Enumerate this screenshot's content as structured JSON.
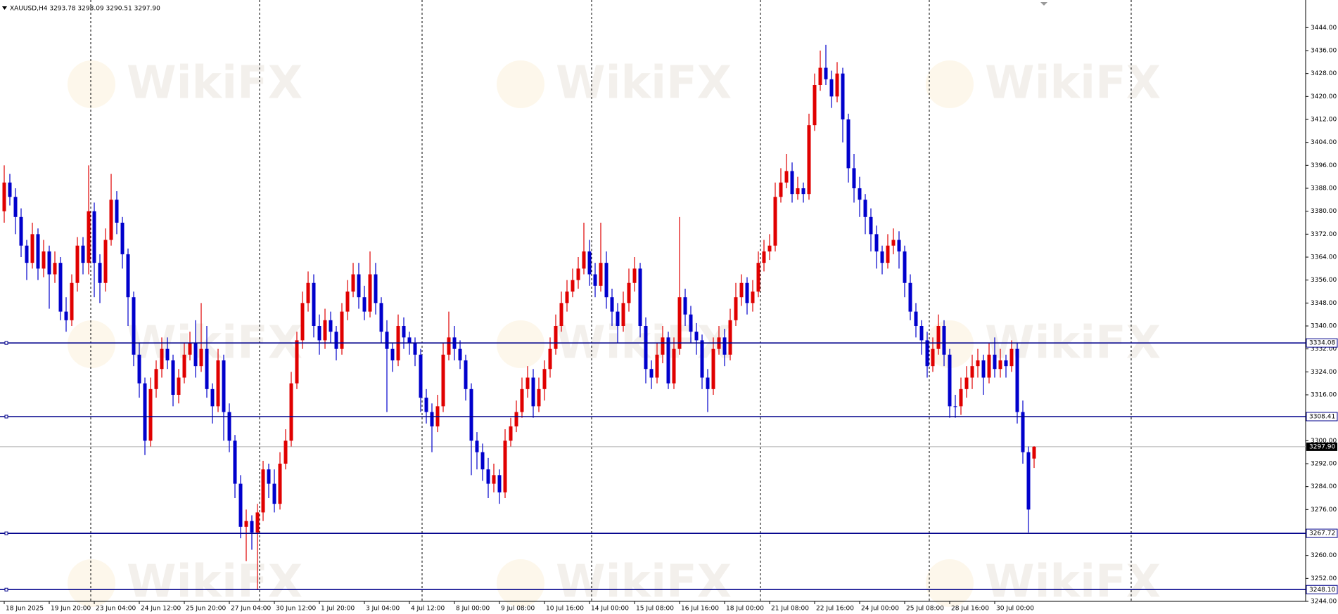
{
  "chart_data": {
    "type": "candlestick",
    "title": "XAUUSD,H4  3293.78 3298.09 3290.51 3297.90",
    "watermark": "WikiFX",
    "up_color": "#e00000",
    "down_color": "#0000cc",
    "level_color": "#00008b",
    "ylim": [
      3244,
      3448
    ],
    "yticks": [
      {
        "value": 3444,
        "label": "3444.00"
      },
      {
        "value": 3436,
        "label": "3436.00"
      },
      {
        "value": 3428,
        "label": "3428.00"
      },
      {
        "value": 3420,
        "label": "3420.00"
      },
      {
        "value": 3412,
        "label": "3412.00"
      },
      {
        "value": 3404,
        "label": "3404.00"
      },
      {
        "value": 3396,
        "label": "3396.00"
      },
      {
        "value": 3388,
        "label": "3388.00"
      },
      {
        "value": 3380,
        "label": "3380.00"
      },
      {
        "value": 3372,
        "label": "3372.00"
      },
      {
        "value": 3364,
        "label": "3364.00"
      },
      {
        "value": 3356,
        "label": "3356.00"
      },
      {
        "value": 3348,
        "label": "3348.00"
      },
      {
        "value": 3340,
        "label": "3340.00"
      },
      {
        "value": 3332,
        "label": "3332.00"
      },
      {
        "value": 3324,
        "label": "3324.00"
      },
      {
        "value": 3316,
        "label": "3316.00"
      },
      {
        "value": 3308,
        "label": "3308.00"
      },
      {
        "value": 3300,
        "label": "3300.00"
      },
      {
        "value": 3292,
        "label": "3292.00"
      },
      {
        "value": 3284,
        "label": "3284.00"
      },
      {
        "value": 3276,
        "label": "3276.00"
      },
      {
        "value": 3268,
        "label": "3268.00"
      },
      {
        "value": 3260,
        "label": "3260.00"
      },
      {
        "value": 3252,
        "label": "3252.00"
      },
      {
        "value": 3244,
        "label": "3244.00"
      }
    ],
    "levels": [
      3334.08,
      3308.41,
      3267.72,
      {
        "value": 3248.1,
        "label": "3248.10"
      }
    ],
    "last_price": {
      "value": 3297.9,
      "label": "3297.90"
    },
    "categories": [
      "18 Jun 2025",
      null,
      null,
      null,
      null,
      null,
      null,
      null,
      "19 Jun 20:00",
      null,
      null,
      null,
      null,
      null,
      null,
      null,
      "23 Jun 04:00",
      null,
      null,
      null,
      null,
      null,
      null,
      null,
      "24 Jun 12:00",
      null,
      null,
      null,
      null,
      null,
      null,
      null,
      "25 Jun 20:00",
      null,
      null,
      null,
      null,
      null,
      null,
      null,
      "27 Jun 04:00",
      null,
      null,
      null,
      null,
      null,
      null,
      null,
      "30 Jun 12:00",
      null,
      null,
      null,
      null,
      null,
      null,
      null,
      "1 Jul 20:00",
      null,
      null,
      null,
      null,
      null,
      null,
      null,
      "3 Jul 04:00",
      null,
      null,
      null,
      null,
      null,
      null,
      null,
      "4 Jul 12:00",
      null,
      null,
      null,
      null,
      null,
      null,
      null,
      "8 Jul 00:00",
      null,
      null,
      null,
      null,
      null,
      null,
      null,
      "9 Jul 08:00",
      null,
      null,
      null,
      null,
      null,
      null,
      null,
      "10 Jul 16:00",
      null,
      null,
      null,
      null,
      null,
      null,
      null,
      "14 Jul 00:00",
      null,
      null,
      null,
      null,
      null,
      null,
      null,
      "15 Jul 08:00",
      null,
      null,
      null,
      null,
      null,
      null,
      null,
      "16 Jul 16:00",
      null,
      null,
      null,
      null,
      null,
      null,
      null,
      "18 Jul 00:00",
      null,
      null,
      null,
      null,
      null,
      null,
      null,
      "21 Jul 08:00",
      null,
      null,
      null,
      null,
      null,
      null,
      null,
      "22 Jul 16:00",
      null,
      null,
      null,
      null,
      null,
      null,
      null,
      "24 Jul 00:00",
      null,
      null,
      null,
      null,
      null,
      null,
      null,
      "25 Jul 08:00",
      null,
      null,
      null,
      null,
      null,
      null,
      null,
      "28 Jul 16:00",
      null,
      null,
      null,
      null,
      null,
      null,
      null,
      "30 Jul 00:00",
      null,
      null,
      null,
      null,
      null,
      null,
      null
    ],
    "candles": [
      [
        3380,
        3396,
        3376,
        3390
      ],
      [
        3390,
        3393,
        3382,
        3385
      ],
      [
        3385,
        3388,
        3372,
        3378
      ],
      [
        3378,
        3381,
        3364,
        3368
      ],
      [
        3368,
        3370,
        3356,
        3362
      ],
      [
        3362,
        3376,
        3360,
        3372
      ],
      [
        3372,
        3374,
        3356,
        3360
      ],
      [
        3360,
        3370,
        3357,
        3366
      ],
      [
        3366,
        3368,
        3346,
        3358
      ],
      [
        3358,
        3366,
        3355,
        3362
      ],
      [
        3362,
        3364,
        3342,
        3345
      ],
      [
        3345,
        3350,
        3338,
        3342
      ],
      [
        3342,
        3358,
        3340,
        3355
      ],
      [
        3355,
        3371,
        3352,
        3368
      ],
      [
        3368,
        3371,
        3358,
        3362
      ],
      [
        3362,
        3396,
        3358,
        3380
      ],
      [
        3380,
        3383,
        3350,
        3362
      ],
      [
        3362,
        3365,
        3348,
        3355
      ],
      [
        3355,
        3374,
        3352,
        3370
      ],
      [
        3370,
        3393,
        3368,
        3384
      ],
      [
        3384,
        3387,
        3372,
        3376
      ],
      [
        3376,
        3378,
        3360,
        3365
      ],
      [
        3365,
        3367,
        3340,
        3350
      ],
      [
        3350,
        3352,
        3326,
        3330
      ],
      [
        3330,
        3334,
        3315,
        3320
      ],
      [
        3320,
        3322,
        3295,
        3300
      ],
      [
        3300,
        3322,
        3298,
        3318
      ],
      [
        3318,
        3328,
        3315,
        3325
      ],
      [
        3325,
        3336,
        3322,
        3332
      ],
      [
        3332,
        3336,
        3325,
        3328
      ],
      [
        3328,
        3330,
        3312,
        3316
      ],
      [
        3316,
        3325,
        3313,
        3322
      ],
      [
        3322,
        3334,
        3320,
        3330
      ],
      [
        3330,
        3338,
        3328,
        3334
      ],
      [
        3334,
        3342,
        3322,
        3326
      ],
      [
        3326,
        3348,
        3324,
        3332
      ],
      [
        3332,
        3340,
        3315,
        3318
      ],
      [
        3318,
        3320,
        3306,
        3312
      ],
      [
        3312,
        3332,
        3310,
        3328
      ],
      [
        3328,
        3330,
        3300,
        3310
      ],
      [
        3310,
        3313,
        3296,
        3300
      ],
      [
        3300,
        3302,
        3280,
        3285
      ],
      [
        3285,
        3288,
        3266,
        3270
      ],
      [
        3270,
        3276,
        3258,
        3272
      ],
      [
        3272,
        3274,
        3262,
        3268
      ],
      [
        3268,
        3278,
        3248,
        3275
      ],
      [
        3275,
        3293,
        3272,
        3290
      ],
      [
        3290,
        3292,
        3280,
        3285
      ],
      [
        3285,
        3290,
        3275,
        3278
      ],
      [
        3278,
        3296,
        3276,
        3292
      ],
      [
        3292,
        3304,
        3290,
        3300
      ],
      [
        3300,
        3324,
        3298,
        3320
      ],
      [
        3320,
        3338,
        3318,
        3335
      ],
      [
        3335,
        3352,
        3332,
        3348
      ],
      [
        3348,
        3359,
        3345,
        3355
      ],
      [
        3355,
        3358,
        3336,
        3340
      ],
      [
        3340,
        3344,
        3330,
        3335
      ],
      [
        3335,
        3346,
        3332,
        3342
      ],
      [
        3342,
        3345,
        3334,
        3338
      ],
      [
        3338,
        3340,
        3328,
        3332
      ],
      [
        3332,
        3348,
        3330,
        3345
      ],
      [
        3345,
        3356,
        3342,
        3352
      ],
      [
        3352,
        3362,
        3350,
        3358
      ],
      [
        3358,
        3362,
        3346,
        3350
      ],
      [
        3350,
        3354,
        3342,
        3345
      ],
      [
        3345,
        3366,
        3343,
        3358
      ],
      [
        3358,
        3362,
        3344,
        3348
      ],
      [
        3348,
        3350,
        3334,
        3338
      ],
      [
        3338,
        3342,
        3310,
        3332
      ],
      [
        3332,
        3334,
        3324,
        3328
      ],
      [
        3328,
        3344,
        3326,
        3340
      ],
      [
        3340,
        3343,
        3332,
        3336
      ],
      [
        3336,
        3338,
        3330,
        3334
      ],
      [
        3334,
        3336,
        3326,
        3330
      ],
      [
        3330,
        3332,
        3310,
        3315
      ],
      [
        3315,
        3318,
        3306,
        3310
      ],
      [
        3310,
        3313,
        3296,
        3305
      ],
      [
        3305,
        3316,
        3303,
        3312
      ],
      [
        3312,
        3334,
        3310,
        3330
      ],
      [
        3330,
        3345,
        3328,
        3336
      ],
      [
        3336,
        3340,
        3328,
        3332
      ],
      [
        3332,
        3335,
        3325,
        3328
      ],
      [
        3328,
        3330,
        3314,
        3318
      ],
      [
        3318,
        3320,
        3288,
        3300
      ],
      [
        3300,
        3303,
        3290,
        3296
      ],
      [
        3296,
        3299,
        3286,
        3290
      ],
      [
        3290,
        3294,
        3280,
        3285
      ],
      [
        3285,
        3292,
        3282,
        3288
      ],
      [
        3288,
        3290,
        3278,
        3282
      ],
      [
        3282,
        3304,
        3280,
        3300
      ],
      [
        3300,
        3308,
        3298,
        3305
      ],
      [
        3305,
        3314,
        3303,
        3310
      ],
      [
        3310,
        3322,
        3308,
        3318
      ],
      [
        3318,
        3326,
        3315,
        3322
      ],
      [
        3322,
        3325,
        3308,
        3312
      ],
      [
        3312,
        3322,
        3310,
        3318
      ],
      [
        3318,
        3328,
        3314,
        3325
      ],
      [
        3325,
        3336,
        3322,
        3332
      ],
      [
        3332,
        3344,
        3330,
        3340
      ],
      [
        3340,
        3352,
        3338,
        3348
      ],
      [
        3348,
        3356,
        3345,
        3352
      ],
      [
        3352,
        3360,
        3350,
        3356
      ],
      [
        3356,
        3364,
        3353,
        3360
      ],
      [
        3360,
        3376,
        3358,
        3366
      ],
      [
        3366,
        3370,
        3354,
        3358
      ],
      [
        3358,
        3362,
        3350,
        3354
      ],
      [
        3354,
        3376,
        3352,
        3362
      ],
      [
        3362,
        3366,
        3346,
        3350
      ],
      [
        3350,
        3353,
        3340,
        3345
      ],
      [
        3345,
        3348,
        3334,
        3340
      ],
      [
        3340,
        3352,
        3338,
        3348
      ],
      [
        3348,
        3360,
        3345,
        3355
      ],
      [
        3355,
        3364,
        3352,
        3360
      ],
      [
        3360,
        3362,
        3336,
        3340
      ],
      [
        3340,
        3343,
        3320,
        3325
      ],
      [
        3325,
        3328,
        3318,
        3322
      ],
      [
        3322,
        3334,
        3320,
        3330
      ],
      [
        3330,
        3340,
        3327,
        3336
      ],
      [
        3336,
        3338,
        3318,
        3320
      ],
      [
        3320,
        3336,
        3318,
        3332
      ],
      [
        3332,
        3378,
        3330,
        3350
      ],
      [
        3350,
        3353,
        3340,
        3344
      ],
      [
        3344,
        3347,
        3334,
        3338
      ],
      [
        3338,
        3341,
        3330,
        3335
      ],
      [
        3335,
        3337,
        3318,
        3322
      ],
      [
        3322,
        3325,
        3310,
        3318
      ],
      [
        3318,
        3336,
        3316,
        3332
      ],
      [
        3332,
        3340,
        3330,
        3336
      ],
      [
        3336,
        3339,
        3326,
        3330
      ],
      [
        3330,
        3346,
        3328,
        3342
      ],
      [
        3342,
        3355,
        3340,
        3350
      ],
      [
        3350,
        3358,
        3347,
        3355
      ],
      [
        3355,
        3357,
        3344,
        3348
      ],
      [
        3348,
        3356,
        3345,
        3352
      ],
      [
        3352,
        3366,
        3350,
        3362
      ],
      [
        3362,
        3370,
        3359,
        3366
      ],
      [
        3366,
        3372,
        3363,
        3368
      ],
      [
        3368,
        3390,
        3366,
        3385
      ],
      [
        3385,
        3395,
        3383,
        3390
      ],
      [
        3390,
        3400,
        3388,
        3394
      ],
      [
        3394,
        3397,
        3383,
        3386
      ],
      [
        3386,
        3392,
        3384,
        3388
      ],
      [
        3388,
        3390,
        3383,
        3386
      ],
      [
        3386,
        3414,
        3384,
        3410
      ],
      [
        3410,
        3428,
        3408,
        3424
      ],
      [
        3424,
        3436,
        3422,
        3430
      ],
      [
        3430,
        3438,
        3424,
        3426
      ],
      [
        3426,
        3429,
        3416,
        3420
      ],
      [
        3420,
        3432,
        3418,
        3428
      ],
      [
        3428,
        3430,
        3404,
        3412
      ],
      [
        3412,
        3414,
        3390,
        3395
      ],
      [
        3395,
        3400,
        3383,
        3388
      ],
      [
        3388,
        3392,
        3378,
        3384
      ],
      [
        3384,
        3386,
        3372,
        3378
      ],
      [
        3378,
        3381,
        3366,
        3372
      ],
      [
        3372,
        3375,
        3360,
        3366
      ],
      [
        3366,
        3368,
        3358,
        3362
      ],
      [
        3362,
        3372,
        3360,
        3368
      ],
      [
        3368,
        3374,
        3365,
        3370
      ],
      [
        3370,
        3373,
        3360,
        3366
      ],
      [
        3366,
        3368,
        3350,
        3355
      ],
      [
        3355,
        3358,
        3342,
        3345
      ],
      [
        3345,
        3348,
        3336,
        3340
      ],
      [
        3340,
        3342,
        3330,
        3335
      ],
      [
        3335,
        3338,
        3322,
        3326
      ],
      [
        3326,
        3336,
        3324,
        3332
      ],
      [
        3332,
        3344,
        3330,
        3340
      ],
      [
        3340,
        3342,
        3326,
        3330
      ],
      [
        3330,
        3332,
        3308,
        3312
      ],
      [
        3312,
        3316,
        3308,
        3312
      ],
      [
        3312,
        3322,
        3309,
        3318
      ],
      [
        3318,
        3326,
        3315,
        3322
      ],
      [
        3322,
        3330,
        3318,
        3326
      ],
      [
        3326,
        3332,
        3322,
        3328
      ],
      [
        3328,
        3330,
        3316,
        3322
      ],
      [
        3322,
        3334,
        3320,
        3330
      ],
      [
        3330,
        3336,
        3322,
        3325
      ],
      [
        3325,
        3332,
        3322,
        3328
      ],
      [
        3328,
        3330,
        3322,
        3326
      ],
      [
        3326,
        3335,
        3324,
        3332
      ],
      [
        3332,
        3334,
        3306,
        3310
      ],
      [
        3310,
        3314,
        3292,
        3296
      ],
      [
        3296,
        3298,
        3268,
        3276
      ],
      [
        3293.78,
        3298.09,
        3290.51,
        3297.9
      ]
    ]
  }
}
